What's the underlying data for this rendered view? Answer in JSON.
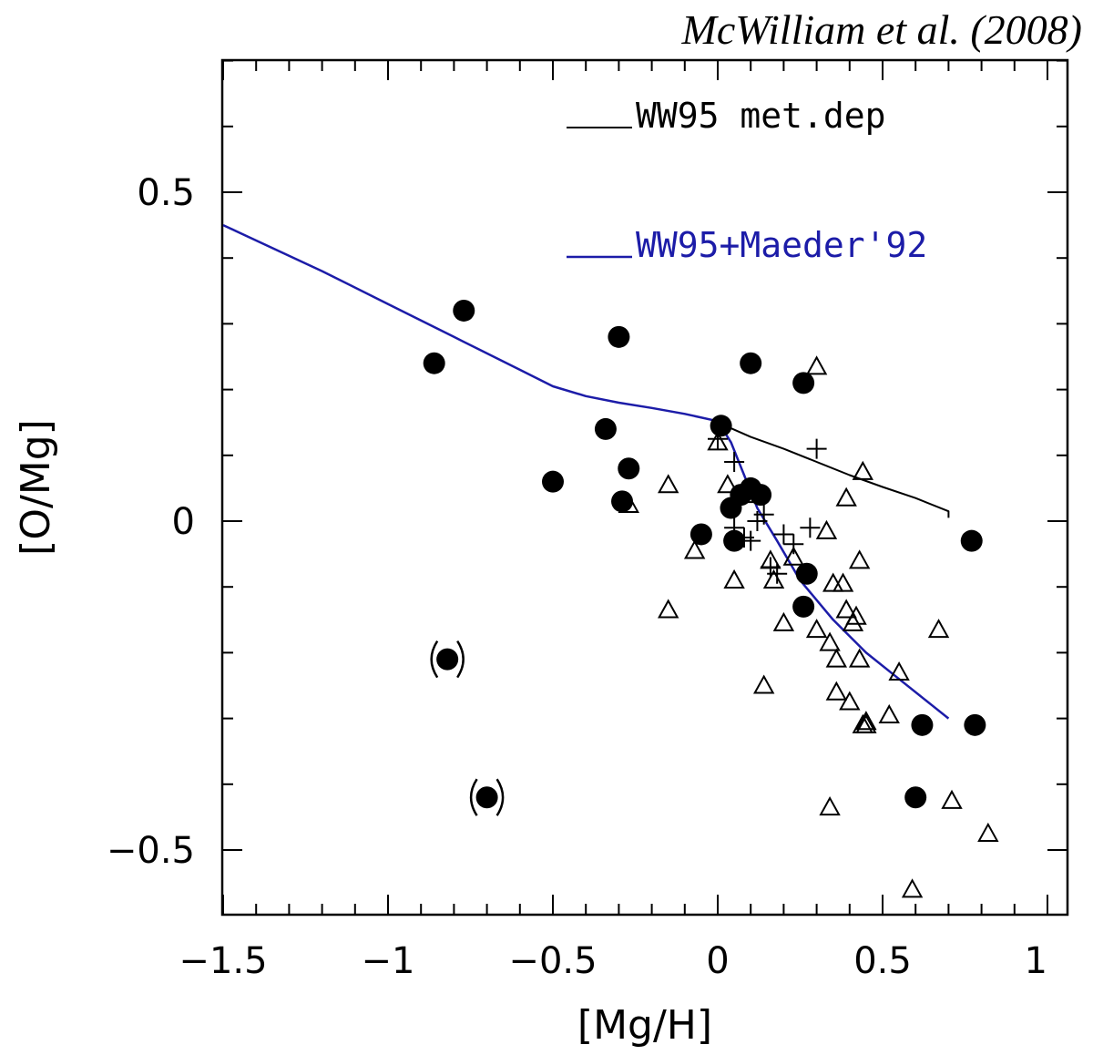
{
  "chart_data": {
    "type": "scatter",
    "title": "",
    "credit": "McWilliam et al. (2008)",
    "xlabel": "[Mg/H]",
    "ylabel": "[O/Mg]",
    "xlim": [
      -1.5,
      1.0
    ],
    "ylim": [
      -0.6,
      0.7
    ],
    "x_tick_labels": [
      "−1.5",
      "−1",
      "−0.5",
      "0",
      "0.5",
      "1"
    ],
    "x_tick_values": [
      -1.5,
      -1,
      -0.5,
      0,
      0.5,
      1
    ],
    "y_tick_labels": [
      "0.5",
      "0",
      "−0.5"
    ],
    "y_tick_values": [
      0.5,
      0,
      -0.5
    ],
    "grid": false,
    "legend_position": "top-right",
    "lines": [
      {
        "name": "WW95 met.dep",
        "color": "#000000",
        "points": [
          [
            0.0,
            0.15
          ],
          [
            0.1,
            0.128
          ],
          [
            0.2,
            0.11
          ],
          [
            0.3,
            0.09
          ],
          [
            0.4,
            0.07
          ],
          [
            0.5,
            0.052
          ],
          [
            0.6,
            0.035
          ],
          [
            0.7,
            0.015
          ],
          [
            0.7,
            0.005
          ]
        ]
      },
      {
        "name": "WW95+Maeder'92",
        "color": "#1c1ca8",
        "points": [
          [
            -1.5,
            0.45
          ],
          [
            -1.35,
            0.415
          ],
          [
            -1.2,
            0.38
          ],
          [
            -1.0,
            0.33
          ],
          [
            -0.8,
            0.28
          ],
          [
            -0.6,
            0.23
          ],
          [
            -0.5,
            0.205
          ],
          [
            -0.4,
            0.19
          ],
          [
            -0.3,
            0.18
          ],
          [
            -0.2,
            0.172
          ],
          [
            -0.1,
            0.163
          ],
          [
            0.0,
            0.152
          ],
          [
            0.04,
            0.12
          ],
          [
            0.08,
            0.07
          ],
          [
            0.12,
            0.02
          ],
          [
            0.18,
            -0.03
          ],
          [
            0.25,
            -0.09
          ],
          [
            0.35,
            -0.15
          ],
          [
            0.45,
            -0.2
          ],
          [
            0.55,
            -0.24
          ],
          [
            0.65,
            -0.28
          ],
          [
            0.7,
            -0.3
          ]
        ]
      }
    ],
    "series": [
      {
        "marker": "filled-circle",
        "color": "#000000",
        "points": [
          [
            -0.86,
            0.24
          ],
          [
            -0.77,
            0.32
          ],
          [
            -0.5,
            0.06
          ],
          [
            -0.34,
            0.14
          ],
          [
            -0.3,
            0.28
          ],
          [
            -0.29,
            0.03
          ],
          [
            -0.27,
            0.08
          ],
          [
            -0.05,
            -0.02
          ],
          [
            0.01,
            0.145
          ],
          [
            0.04,
            0.02
          ],
          [
            0.05,
            -0.03
          ],
          [
            0.07,
            0.04
          ],
          [
            0.1,
            0.05
          ],
          [
            0.13,
            0.04
          ],
          [
            0.1,
            0.24
          ],
          [
            0.26,
            0.21
          ],
          [
            0.27,
            -0.08
          ],
          [
            0.26,
            -0.13
          ],
          [
            0.62,
            -0.31
          ],
          [
            0.6,
            -0.42
          ],
          [
            0.77,
            -0.03
          ],
          [
            0.78,
            -0.31
          ]
        ]
      },
      {
        "marker": "parenthesized-filled-circle",
        "color": "#000000",
        "points": [
          [
            -0.82,
            -0.21
          ],
          [
            -0.7,
            -0.42
          ]
        ]
      },
      {
        "marker": "open-triangle",
        "color": "#000000",
        "points": [
          [
            0.3,
            0.235
          ],
          [
            0.44,
            0.075
          ],
          [
            -0.27,
            0.025
          ],
          [
            -0.15,
            0.055
          ],
          [
            -0.07,
            -0.045
          ],
          [
            -0.15,
            -0.135
          ],
          [
            0.0,
            0.12
          ],
          [
            0.03,
            0.055
          ],
          [
            0.05,
            -0.09
          ],
          [
            0.1,
            0.04
          ],
          [
            0.14,
            -0.25
          ],
          [
            0.16,
            -0.06
          ],
          [
            0.17,
            -0.09
          ],
          [
            0.2,
            -0.155
          ],
          [
            0.23,
            -0.055
          ],
          [
            0.3,
            -0.165
          ],
          [
            0.33,
            -0.015
          ],
          [
            0.34,
            -0.185
          ],
          [
            0.35,
            -0.095
          ],
          [
            0.36,
            -0.21
          ],
          [
            0.36,
            -0.26
          ],
          [
            0.38,
            -0.095
          ],
          [
            0.39,
            -0.135
          ],
          [
            0.39,
            0.035
          ],
          [
            0.4,
            -0.275
          ],
          [
            0.41,
            -0.155
          ],
          [
            0.42,
            -0.145
          ],
          [
            0.43,
            -0.21
          ],
          [
            0.43,
            -0.06
          ],
          [
            0.44,
            -0.31
          ],
          [
            0.45,
            -0.31
          ],
          [
            0.52,
            -0.295
          ],
          [
            0.55,
            -0.23
          ],
          [
            0.67,
            -0.165
          ],
          [
            0.34,
            -0.435
          ],
          [
            0.71,
            -0.425
          ],
          [
            0.82,
            -0.475
          ],
          [
            0.59,
            -0.56
          ],
          [
            0.45,
            -0.305
          ]
        ]
      },
      {
        "marker": "plus",
        "color": "#000000",
        "points": [
          [
            0.0,
            0.125
          ],
          [
            0.05,
            0.09
          ],
          [
            0.05,
            -0.01
          ],
          [
            0.08,
            -0.025
          ],
          [
            0.1,
            -0.03
          ],
          [
            0.12,
            0.0
          ],
          [
            0.14,
            0.01
          ],
          [
            0.16,
            -0.07
          ],
          [
            0.18,
            -0.08
          ],
          [
            0.2,
            -0.02
          ],
          [
            0.23,
            -0.035
          ],
          [
            0.28,
            -0.01
          ],
          [
            0.3,
            0.11
          ]
        ]
      }
    ],
    "legend": [
      {
        "label": "WW95 met.dep",
        "color": "#000000"
      },
      {
        "label": "WW95+Maeder'92",
        "color": "#1c1ca8"
      }
    ]
  }
}
